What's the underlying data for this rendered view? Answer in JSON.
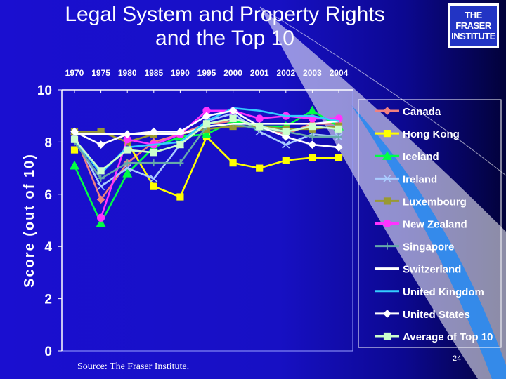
{
  "slide": {
    "title_line1": "Legal System and Property Rights",
    "title_line2": "and the Top 10",
    "logo_line1": "THE FRASER",
    "logo_line2": "INSTITUTE",
    "source": "Source: The Fraser Institute.",
    "page_number": "24"
  },
  "chart_data": {
    "type": "line",
    "title": "",
    "xlabel": "",
    "ylabel": "Score (out of 10)",
    "categories": [
      "1970",
      "1975",
      "1980",
      "1985",
      "1990",
      "1995",
      "2000",
      "2001",
      "2002",
      "2003",
      "2004"
    ],
    "ylim": [
      0,
      10
    ],
    "yticks": [
      0,
      2,
      4,
      6,
      8,
      10
    ],
    "grid": false,
    "legend_position": "right",
    "series": [
      {
        "name": "Canada",
        "color": "#f08080",
        "marker": "diamond",
        "values": [
          8.3,
          5.8,
          7.2,
          8.0,
          8.3,
          8.7,
          8.8,
          8.6,
          8.3,
          8.7,
          8.7
        ]
      },
      {
        "name": "Hong Kong",
        "color": "#ffff00",
        "marker": "square",
        "values": [
          7.7,
          null,
          8.0,
          6.3,
          5.9,
          8.2,
          7.2,
          7.0,
          7.3,
          7.4,
          7.4
        ]
      },
      {
        "name": "Iceland",
        "color": "#00ff44",
        "marker": "triangle",
        "values": [
          7.1,
          4.9,
          6.8,
          7.8,
          8.2,
          8.3,
          8.8,
          8.6,
          8.6,
          9.2,
          8.6
        ]
      },
      {
        "name": "Ireland",
        "color": "#aaccff",
        "marker": "x",
        "values": [
          8.2,
          6.3,
          7.0,
          6.6,
          7.9,
          8.8,
          9.1,
          8.4,
          7.9,
          8.3,
          8.2
        ]
      },
      {
        "name": "Luxembourg",
        "color": "#999933",
        "marker": "square",
        "values": [
          8.4,
          8.4,
          8.0,
          8.3,
          8.3,
          8.5,
          8.6,
          8.6,
          8.5,
          8.5,
          8.6
        ]
      },
      {
        "name": "New Zealand",
        "color": "#ff33ff",
        "marker": "circle",
        "values": [
          null,
          5.1,
          8.1,
          7.9,
          8.3,
          9.2,
          9.2,
          8.9,
          9.0,
          8.9,
          8.9
        ]
      },
      {
        "name": "Singapore",
        "color": "#66aaaa",
        "marker": "plus",
        "values": [
          8.0,
          6.6,
          7.2,
          7.2,
          7.2,
          8.6,
          8.7,
          8.5,
          8.4,
          8.2,
          8.2
        ]
      },
      {
        "name": "Switzerland",
        "color": "#ffffff",
        "marker": "line",
        "values": [
          8.3,
          8.3,
          8.3,
          8.3,
          8.3,
          8.6,
          8.7,
          8.7,
          8.7,
          8.7,
          8.8
        ]
      },
      {
        "name": "United Kingdom",
        "color": "#33ccff",
        "marker": "line",
        "values": [
          8.1,
          6.8,
          7.8,
          7.9,
          8.0,
          8.8,
          9.3,
          9.2,
          9.0,
          9.0,
          8.8
        ]
      },
      {
        "name": "United States",
        "color": "#ffffff",
        "marker": "diamond",
        "values": [
          8.4,
          7.9,
          8.3,
          8.4,
          8.4,
          9.0,
          9.2,
          8.6,
          8.2,
          7.9,
          7.8
        ]
      },
      {
        "name": "Average of Top 10",
        "color": "#ccffcc",
        "marker": "square",
        "values": [
          8.1,
          6.9,
          7.7,
          7.6,
          7.9,
          8.7,
          8.9,
          8.6,
          8.4,
          8.6,
          8.5
        ]
      }
    ]
  }
}
